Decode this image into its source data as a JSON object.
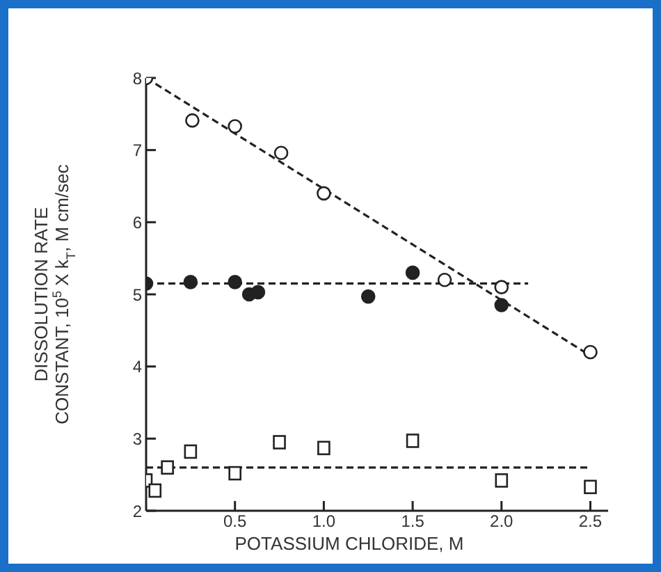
{
  "chart_data": {
    "type": "scatter",
    "xlabel": "POTASSIUM CHLORIDE, $_{}$M",
    "ylabel": "DISSOLUTION RATE\nCONSTANT, 10$^{5}$ X k$_{T}$, M cm/sec",
    "xlim": [
      0,
      2.6
    ],
    "xticks": [
      {
        "value": 0.5,
        "label": "0.5"
      },
      {
        "value": 1,
        "label": "1.0"
      },
      {
        "value": 1.5,
        "label": "1.5"
      },
      {
        "value": 2,
        "label": "2.0"
      },
      {
        "value": 2.5,
        "label": "2.5"
      }
    ],
    "ylim": [
      2,
      8
    ],
    "yticks": [
      2,
      3,
      4,
      5,
      6,
      7,
      8
    ],
    "grid": false,
    "legend": false,
    "series": [
      {
        "marker": "circle",
        "color": "#ffffff",
        "x": [
          0,
          0.26,
          0.5,
          0.76,
          1.0,
          1.68,
          2.0,
          2.5
        ],
        "values": [
          8.0,
          7.41,
          7.33,
          6.96,
          6.4,
          5.2,
          5.1,
          4.2
        ]
      },
      {
        "marker": "circle",
        "color": "#222222",
        "x": [
          0,
          0.25,
          0.5,
          0.58,
          0.63,
          1.25,
          1.5,
          2.0
        ],
        "values": [
          5.15,
          5.17,
          5.17,
          5.0,
          5.03,
          4.97,
          5.3,
          4.85
        ]
      },
      {
        "marker": "square",
        "color": "#ffffff",
        "x": [
          0,
          0.05,
          0.12,
          0.25,
          0.5,
          0.75,
          1.0,
          1.5,
          2.0,
          2.5
        ],
        "values": [
          2.42,
          2.28,
          2.6,
          2.82,
          2.52,
          2.95,
          2.87,
          2.97,
          2.42,
          2.33
        ]
      },
      {
        "type": "line",
        "line_style": "dashed",
        "marker": "none",
        "color": "#222222",
        "x": [
          0,
          2.52
        ],
        "values": [
          8.0,
          4.12
        ]
      },
      {
        "type": "line",
        "line_style": "dashed",
        "marker": "none",
        "color": "#222222",
        "x": [
          0,
          2.15
        ],
        "values": [
          5.15,
          5.15
        ]
      },
      {
        "type": "line",
        "line_style": "dashed",
        "marker": "none",
        "color": "#222222",
        "x": [
          0,
          2.5
        ],
        "values": [
          2.6,
          2.6
        ]
      }
    ]
  }
}
